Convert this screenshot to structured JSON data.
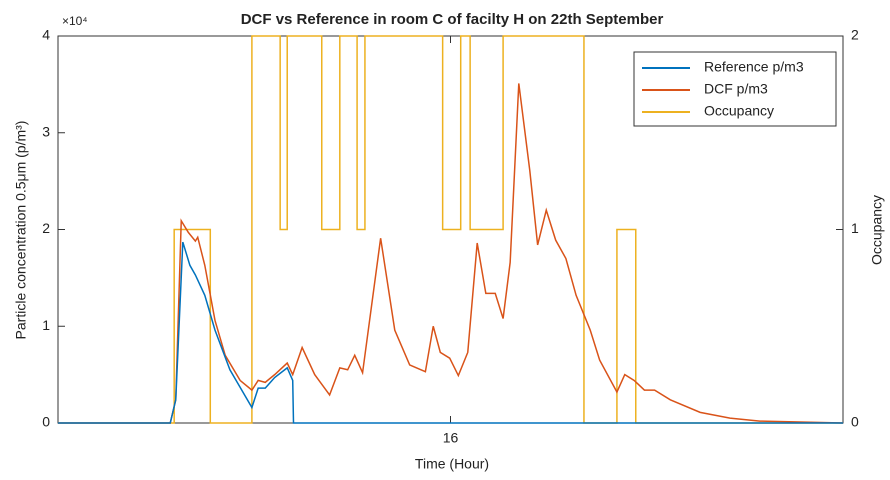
{
  "chart_data": {
    "type": "line",
    "title": "DCF vs Reference in room C of facilty H on 22th September",
    "x_label": "Time (Hour)",
    "y_label": "Particle concentration 0.5μm (p/m³)",
    "y2_label": "Occupancy",
    "y_exponent": "×10⁴",
    "xlim": [
      11,
      21
    ],
    "xticks": [
      16
    ],
    "ylim": [
      0,
      40000
    ],
    "yticks": [
      0,
      {
        "value": 10000,
        "label": "1"
      },
      {
        "value": 20000,
        "label": "2"
      },
      {
        "value": 30000,
        "label": "3"
      },
      {
        "value": 40000,
        "label": "4"
      }
    ],
    "y2lim": [
      0,
      2
    ],
    "y2ticks": [
      0,
      1,
      2
    ],
    "legend": "top-right",
    "series": [
      {
        "name": "Reference p/m3",
        "color": "#0072bd",
        "x": [
          11,
          12.43,
          12.5,
          12.59,
          12.68,
          12.75,
          12.87,
          13.0,
          13.19,
          13.47,
          13.55,
          13.64,
          13.76,
          13.92,
          13.99,
          14.0,
          21
        ],
        "values": [
          0,
          0,
          2400,
          18700,
          16300,
          15300,
          13200,
          9600,
          5500,
          1600,
          3600,
          3600,
          4700,
          5700,
          4400,
          0,
          0
        ]
      },
      {
        "name": "DCF p/m3",
        "color": "#d95319",
        "x": [
          11,
          12.43,
          12.5,
          12.57,
          12.66,
          12.75,
          12.78,
          12.87,
          13.0,
          13.13,
          13.32,
          13.47,
          13.55,
          13.64,
          13.76,
          13.92,
          13.99,
          14.11,
          14.27,
          14.46,
          14.59,
          14.69,
          14.78,
          14.88,
          15.11,
          15.29,
          15.48,
          15.68,
          15.78,
          15.87,
          15.99,
          16.1,
          16.22,
          16.34,
          16.45,
          16.57,
          16.67,
          16.76,
          16.87,
          17.01,
          17.11,
          17.22,
          17.34,
          17.47,
          17.6,
          17.78,
          17.9,
          18.12,
          18.22,
          18.34,
          18.47,
          18.6,
          18.8,
          19.18,
          19.56,
          19.94,
          20.45,
          21
        ],
        "values": [
          0,
          0,
          2400,
          20900,
          19700,
          18800,
          19200,
          16300,
          10600,
          7000,
          4400,
          3400,
          4400,
          4200,
          5000,
          6200,
          5000,
          7800,
          5000,
          2900,
          5700,
          5500,
          7000,
          5200,
          19100,
          9600,
          6000,
          5300,
          10000,
          7300,
          6700,
          4900,
          7300,
          18600,
          13400,
          13400,
          10800,
          16600,
          35100,
          26100,
          18400,
          22000,
          18900,
          17000,
          13200,
          9600,
          6500,
          3200,
          5000,
          4400,
          3400,
          3400,
          2400,
          1100,
          500,
          200,
          100,
          0
        ]
      },
      {
        "name": "Occupancy",
        "color": "#edb120",
        "axis": "y2",
        "x": [
          11,
          12.48,
          12.48,
          12.94,
          12.94,
          13.47,
          13.47,
          13.83,
          13.83,
          13.92,
          13.92,
          14.36,
          14.36,
          14.59,
          14.59,
          14.81,
          14.81,
          14.91,
          14.91,
          15.9,
          15.9,
          16.13,
          16.13,
          16.25,
          16.25,
          16.67,
          16.67,
          17.7,
          17.7,
          18.12,
          18.12,
          18.36,
          18.36,
          21
        ],
        "values": [
          0,
          0,
          1,
          1,
          0,
          0,
          2,
          2,
          1,
          1,
          2,
          2,
          1,
          1,
          2,
          2,
          1,
          1,
          2,
          2,
          1,
          1,
          2,
          2,
          1,
          1,
          2,
          2,
          0,
          0,
          1,
          1,
          0,
          0
        ]
      }
    ]
  }
}
